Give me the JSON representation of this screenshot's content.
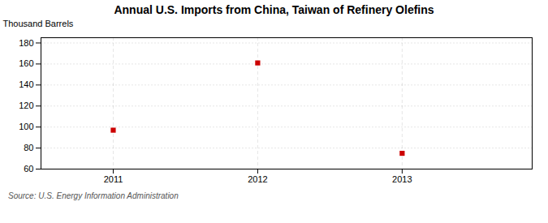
{
  "chart_data": {
    "type": "scatter",
    "title": "Annual U.S. Imports from China, Taiwan of Refinery Olefins",
    "ylabel": "Thousand Barrels",
    "source": "Source: U.S. Energy Information Administration",
    "x": [
      2011,
      2012,
      2013
    ],
    "values": [
      97,
      161,
      75
    ],
    "xlim": [
      2010.5,
      2013.9
    ],
    "ylim": [
      60,
      185
    ],
    "xticks": [
      2011,
      2012,
      2013
    ],
    "yticks": [
      60,
      80,
      100,
      120,
      140,
      160,
      180
    ],
    "color": "#cc0000",
    "marker": "square",
    "grid": true
  }
}
